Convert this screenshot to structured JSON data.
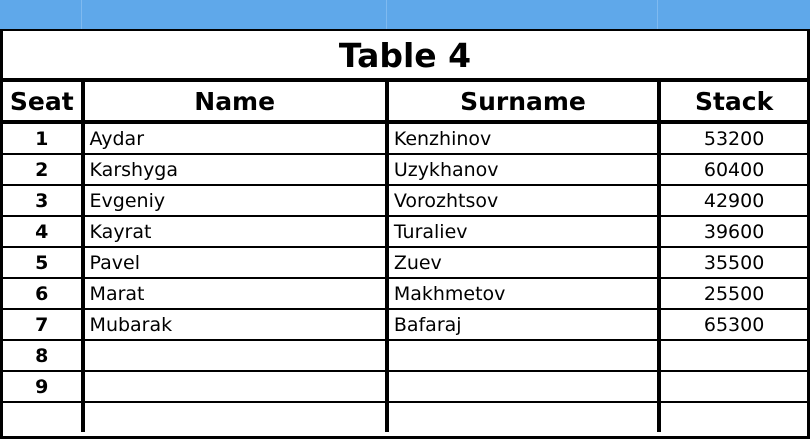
{
  "header_bar_color": "#5fa8ea",
  "title": "Table 4",
  "columns": [
    "Seat",
    "Name",
    "Surname",
    "Stack"
  ],
  "rows": [
    {
      "seat": "1",
      "name": "Aydar",
      "surname": "Kenzhinov",
      "stack": "53200"
    },
    {
      "seat": "2",
      "name": "Karshyga",
      "surname": "Uzykhanov",
      "stack": "60400"
    },
    {
      "seat": "3",
      "name": "Evgeniy",
      "surname": "Vorozhtsov",
      "stack": "42900"
    },
    {
      "seat": "4",
      "name": "Kayrat",
      "surname": "Turaliev",
      "stack": "39600"
    },
    {
      "seat": "5",
      "name": "Pavel",
      "surname": "Zuev",
      "stack": "35500"
    },
    {
      "seat": "6",
      "name": "Marat",
      "surname": "Makhmetov",
      "stack": "25500"
    },
    {
      "seat": "7",
      "name": "Mubarak",
      "surname": "Bafaraj",
      "stack": "65300"
    },
    {
      "seat": "8",
      "name": "",
      "surname": "",
      "stack": ""
    },
    {
      "seat": "9",
      "name": "",
      "surname": "",
      "stack": ""
    },
    {
      "seat": "",
      "name": "",
      "surname": "",
      "stack": ""
    }
  ]
}
